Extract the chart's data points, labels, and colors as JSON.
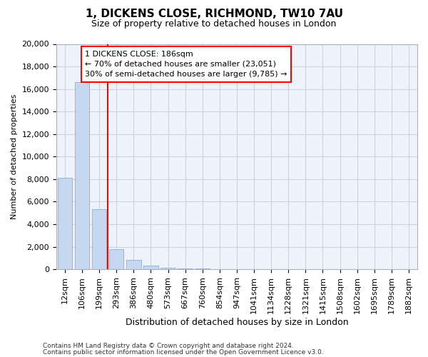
{
  "title1": "1, DICKENS CLOSE, RICHMOND, TW10 7AU",
  "title2": "Size of property relative to detached houses in London",
  "xlabel": "Distribution of detached houses by size in London",
  "ylabel": "Number of detached properties",
  "bar_categories": [
    "12sqm",
    "106sqm",
    "199sqm",
    "293sqm",
    "386sqm",
    "480sqm",
    "573sqm",
    "667sqm",
    "760sqm",
    "854sqm",
    "947sqm",
    "1041sqm",
    "1134sqm",
    "1228sqm",
    "1321sqm",
    "1415sqm",
    "1508sqm",
    "1602sqm",
    "1695sqm",
    "1789sqm",
    "1882sqm"
  ],
  "bar_values": [
    8100,
    16600,
    5300,
    1800,
    800,
    300,
    150,
    80,
    50,
    0,
    0,
    0,
    0,
    0,
    0,
    0,
    0,
    0,
    0,
    0,
    0
  ],
  "bar_color": "#c5d8f0",
  "bar_edge_color": "#88afd4",
  "vline_x": 2.5,
  "vline_color": "red",
  "annotation_text": "1 DICKENS CLOSE: 186sqm\n← 70% of detached houses are smaller (23,051)\n30% of semi-detached houses are larger (9,785) →",
  "annotation_box_color": "white",
  "annotation_box_edge_color": "red",
  "ylim": [
    0,
    20000
  ],
  "yticks": [
    0,
    2000,
    4000,
    6000,
    8000,
    10000,
    12000,
    14000,
    16000,
    18000,
    20000
  ],
  "footer1": "Contains HM Land Registry data © Crown copyright and database right 2024.",
  "footer2": "Contains public sector information licensed under the Open Government Licence v3.0.",
  "bg_color": "#eef2fa",
  "grid_color": "#c8cfe0",
  "title1_fontsize": 11,
  "title2_fontsize": 9,
  "annot_fontsize": 8,
  "ylabel_fontsize": 8,
  "xlabel_fontsize": 9,
  "tick_fontsize": 8,
  "footer_fontsize": 6.5
}
